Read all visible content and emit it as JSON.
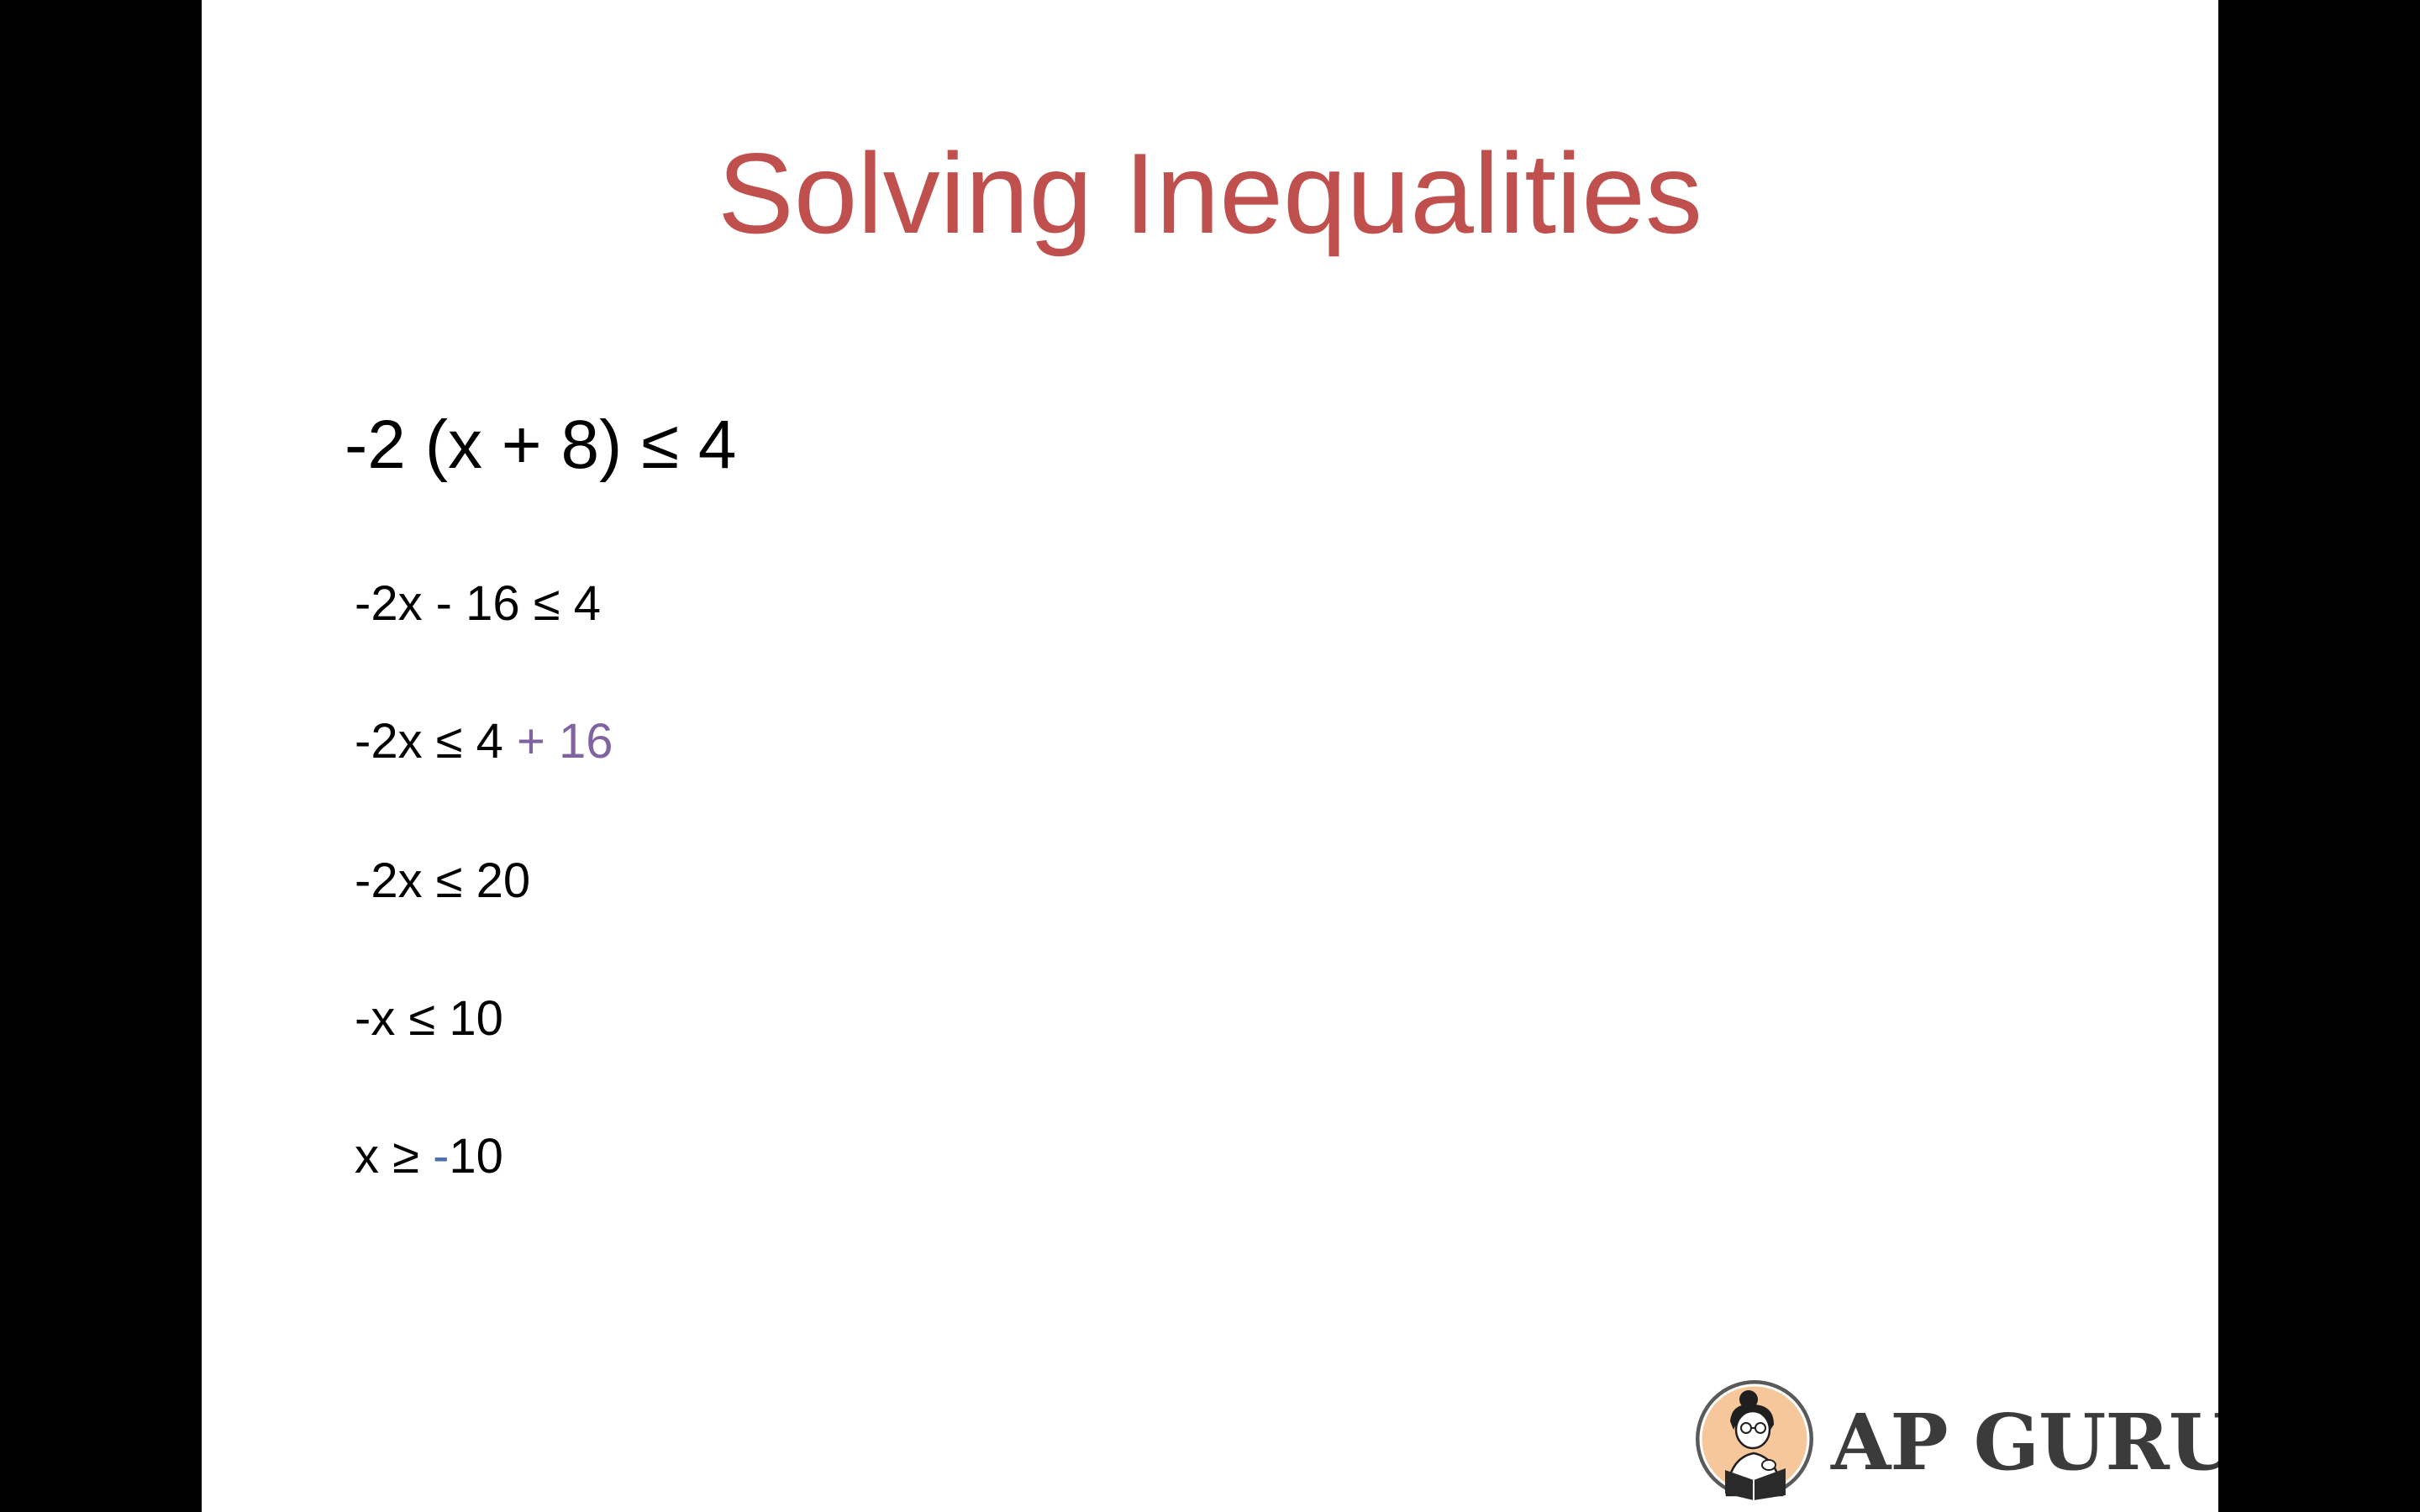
{
  "slide": {
    "title": "Solving Inequalities",
    "main_equation": "-2 (x + 8) ≤ 4",
    "steps": [
      {
        "parts": [
          "-2x - 16 ≤ 4"
        ]
      },
      {
        "parts": [
          "-2x ≤ 4 ",
          "+ 16"
        ]
      },
      {
        "parts": [
          "-2x ≤ 20"
        ]
      },
      {
        "parts": [
          "-x ≤ 10"
        ]
      },
      {
        "parts": [
          "x ≥ ",
          "-",
          "10"
        ]
      }
    ]
  },
  "logo": {
    "text": "AP GURU",
    "icon": "reading-person-badge-icon"
  },
  "colors": {
    "title": "#C0504D",
    "highlight_purple": "#8064A2",
    "highlight_blue": "#4F6FAA",
    "background": "#FFFFFF",
    "letterbox": "#000000"
  }
}
